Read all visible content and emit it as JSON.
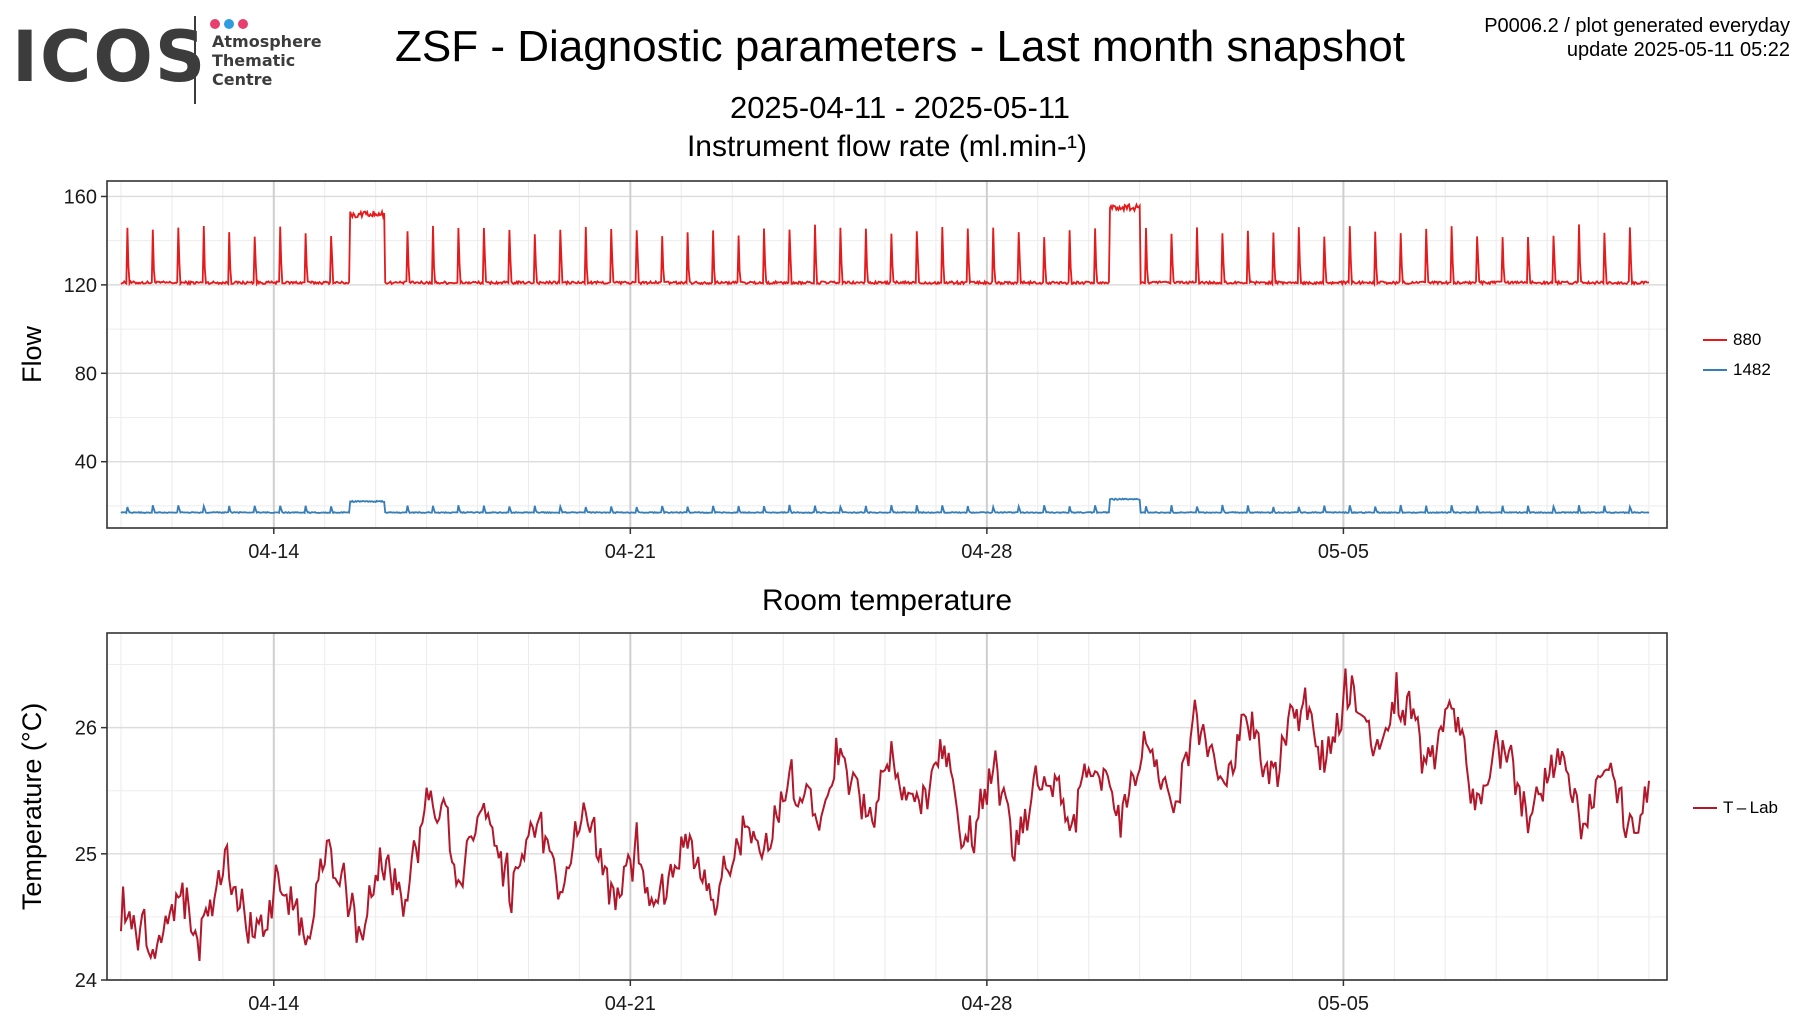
{
  "logo": {
    "wordmark": "ICOS",
    "lines": [
      "Atmosphere",
      "Thematic",
      "Centre"
    ],
    "dot_colors": [
      "#e83e6d",
      "#2f9be0",
      "#e83e6d"
    ]
  },
  "header": {
    "title": "ZSF - Diagnostic parameters - Last month snapshot",
    "date_range": "2025-04-11 - 2025-05-11",
    "note_line1": "P0006.2 / plot generated everyday",
    "note_line2": "update  2025-05-11 05:22"
  },
  "chart_data": [
    {
      "type": "line",
      "title": "Instrument flow rate (ml.min-¹)",
      "xlabel": "",
      "ylabel": "Flow",
      "x_ticks": [
        "04-14",
        "04-21",
        "04-28",
        "05-05"
      ],
      "y_ticks": [
        40,
        80,
        120,
        160
      ],
      "ylim": [
        10,
        167
      ],
      "xlim": [
        "2025-04-11",
        "2025-05-11"
      ],
      "grid": true,
      "legend_position": "right",
      "series": [
        {
          "name": "880",
          "color": "#e41a1c",
          "baseline": 121,
          "spike_peak_approx": 145,
          "spikes_per_day": 2,
          "elevated_periods": [
            {
              "start": "2025-04-15T12:00",
              "end": "2025-04-16T04:00",
              "value": 152
            },
            {
              "start": "2025-04-30T10:00",
              "end": "2025-05-01T00:00",
              "value": 155
            }
          ]
        },
        {
          "name": "1482",
          "color": "#377eb8",
          "baseline": 17,
          "spike_peak_approx": 20,
          "spikes_per_day": 2,
          "elevated_periods": [
            {
              "start": "2025-04-15T12:00",
              "end": "2025-04-16T04:00",
              "value": 22
            },
            {
              "start": "2025-04-30T10:00",
              "end": "2025-05-01T00:00",
              "value": 23
            }
          ]
        }
      ]
    },
    {
      "type": "line",
      "title": "Room temperature",
      "xlabel": "",
      "ylabel": "Temperature (°C)",
      "x_ticks": [
        "04-14",
        "04-21",
        "04-28",
        "05-05"
      ],
      "y_ticks": [
        24,
        25,
        26
      ],
      "ylim": [
        24.0,
        26.75
      ],
      "xlim": [
        "2025-04-11",
        "2025-05-11"
      ],
      "grid": true,
      "legend_position": "right",
      "series": [
        {
          "name": "T – Lab",
          "color": "#b2182b",
          "x": [
            "2025-04-11",
            "2025-04-12",
            "2025-04-13",
            "2025-04-14",
            "2025-04-15",
            "2025-04-16",
            "2025-04-17",
            "2025-04-18",
            "2025-04-19",
            "2025-04-20",
            "2025-04-21",
            "2025-04-22",
            "2025-04-23",
            "2025-04-24",
            "2025-04-25",
            "2025-04-26",
            "2025-04-27",
            "2025-04-28",
            "2025-04-29",
            "2025-04-30",
            "2025-05-01",
            "2025-05-02",
            "2025-05-03",
            "2025-05-04",
            "2025-05-05",
            "2025-05-06",
            "2025-05-07",
            "2025-05-08",
            "2025-05-09",
            "2025-05-10",
            "2025-05-11"
          ],
          "y": [
            24.4,
            24.5,
            24.7,
            24.5,
            24.8,
            24.6,
            25.2,
            25.1,
            24.9,
            25.1,
            24.8,
            24.9,
            24.9,
            25.3,
            25.55,
            25.55,
            25.5,
            25.35,
            25.4,
            25.5,
            25.6,
            25.7,
            25.9,
            25.9,
            26.05,
            26.1,
            25.9,
            25.6,
            25.55,
            25.5,
            25.4
          ],
          "daily_amplitude_approx": 0.5
        }
      ]
    }
  ]
}
